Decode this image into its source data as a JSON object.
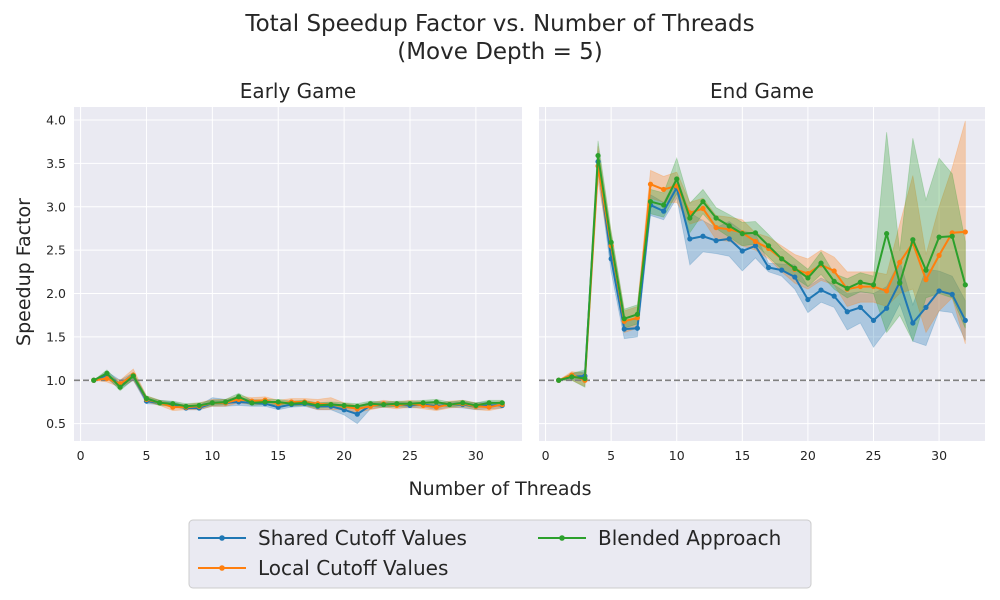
{
  "figure": {
    "title_line1": "Total Speedup Factor vs. Number of Threads",
    "title_line2": "(Move Depth = 5)",
    "xlabel": "Number of Threads",
    "ylabel": "Speedup Factor"
  },
  "colors": {
    "background": "#eaeaf2",
    "grid": "#ffffff",
    "reference_line": "#808080",
    "shared": "#1f77b4",
    "local": "#ff7f0e",
    "blended": "#2ca02c"
  },
  "chart_data": [
    {
      "type": "line",
      "title": "Early Game",
      "xlim": [
        -0.5,
        33.5
      ],
      "ylim": [
        0.3,
        4.15
      ],
      "xticks": [
        0,
        5,
        10,
        15,
        20,
        25,
        30
      ],
      "yticks": [
        0.5,
        1.0,
        1.5,
        2.0,
        2.5,
        3.0,
        3.5,
        4.0
      ],
      "ytick_labels": [
        "0.5",
        "1.0",
        "1.5",
        "2.0",
        "2.5",
        "3.0",
        "3.5",
        "4.0"
      ],
      "reference_line_y": 1.0,
      "x": [
        1,
        2,
        3,
        4,
        5,
        6,
        7,
        8,
        9,
        10,
        11,
        12,
        13,
        14,
        15,
        16,
        17,
        18,
        19,
        20,
        21,
        22,
        23,
        24,
        25,
        26,
        27,
        28,
        29,
        30,
        31,
        32
      ],
      "series": [
        {
          "name": "Shared Cutoff Values",
          "values": [
            1.0,
            1.06,
            0.95,
            1.05,
            0.76,
            0.74,
            0.72,
            0.68,
            0.68,
            0.74,
            0.74,
            0.75,
            0.74,
            0.73,
            0.69,
            0.72,
            0.73,
            0.7,
            0.7,
            0.66,
            0.61,
            0.71,
            0.72,
            0.72,
            0.71,
            0.72,
            0.7,
            0.72,
            0.72,
            0.7,
            0.71,
            0.71
          ],
          "lower": [
            1.0,
            1.02,
            0.9,
            1.0,
            0.73,
            0.72,
            0.7,
            0.66,
            0.66,
            0.7,
            0.7,
            0.71,
            0.7,
            0.7,
            0.66,
            0.69,
            0.7,
            0.66,
            0.66,
            0.6,
            0.5,
            0.67,
            0.69,
            0.69,
            0.68,
            0.69,
            0.66,
            0.69,
            0.68,
            0.66,
            0.67,
            0.68
          ],
          "upper": [
            1.0,
            1.1,
            1.0,
            1.09,
            0.8,
            0.77,
            0.75,
            0.71,
            0.71,
            0.8,
            0.78,
            0.8,
            0.78,
            0.77,
            0.73,
            0.76,
            0.76,
            0.74,
            0.74,
            0.71,
            0.7,
            0.75,
            0.75,
            0.75,
            0.74,
            0.75,
            0.74,
            0.75,
            0.75,
            0.74,
            0.75,
            0.74
          ]
        },
        {
          "name": "Local Cutoff Values",
          "values": [
            1.0,
            1.02,
            0.96,
            1.06,
            0.78,
            0.74,
            0.69,
            0.69,
            0.7,
            0.74,
            0.74,
            0.78,
            0.76,
            0.77,
            0.73,
            0.75,
            0.75,
            0.73,
            0.72,
            0.7,
            0.67,
            0.7,
            0.73,
            0.71,
            0.73,
            0.71,
            0.69,
            0.72,
            0.73,
            0.7,
            0.69,
            0.72
          ],
          "lower": [
            1.0,
            0.98,
            0.92,
            1.0,
            0.75,
            0.71,
            0.65,
            0.66,
            0.66,
            0.7,
            0.7,
            0.74,
            0.72,
            0.73,
            0.69,
            0.71,
            0.71,
            0.66,
            0.66,
            0.66,
            0.63,
            0.66,
            0.69,
            0.67,
            0.69,
            0.67,
            0.65,
            0.68,
            0.69,
            0.66,
            0.65,
            0.68
          ],
          "upper": [
            1.0,
            1.06,
            1.0,
            1.13,
            0.82,
            0.77,
            0.73,
            0.72,
            0.74,
            0.78,
            0.78,
            0.82,
            0.8,
            0.81,
            0.77,
            0.79,
            0.79,
            0.78,
            0.8,
            0.74,
            0.71,
            0.74,
            0.77,
            0.75,
            0.77,
            0.75,
            0.73,
            0.76,
            0.77,
            0.74,
            0.73,
            0.76
          ]
        },
        {
          "name": "Blended Approach",
          "values": [
            1.0,
            1.08,
            0.92,
            1.05,
            0.79,
            0.74,
            0.73,
            0.7,
            0.71,
            0.74,
            0.75,
            0.81,
            0.74,
            0.75,
            0.75,
            0.73,
            0.74,
            0.71,
            0.72,
            0.71,
            0.7,
            0.73,
            0.72,
            0.73,
            0.73,
            0.74,
            0.75,
            0.72,
            0.74,
            0.71,
            0.74,
            0.74
          ],
          "lower": [
            1.0,
            1.04,
            0.88,
            1.01,
            0.76,
            0.71,
            0.7,
            0.67,
            0.68,
            0.71,
            0.72,
            0.77,
            0.71,
            0.72,
            0.72,
            0.7,
            0.71,
            0.68,
            0.69,
            0.68,
            0.67,
            0.7,
            0.69,
            0.7,
            0.7,
            0.71,
            0.72,
            0.69,
            0.71,
            0.68,
            0.71,
            0.71
          ],
          "upper": [
            1.0,
            1.12,
            0.96,
            1.09,
            0.82,
            0.77,
            0.76,
            0.73,
            0.74,
            0.77,
            0.78,
            0.85,
            0.77,
            0.78,
            0.78,
            0.76,
            0.77,
            0.74,
            0.75,
            0.74,
            0.73,
            0.76,
            0.75,
            0.76,
            0.76,
            0.77,
            0.78,
            0.75,
            0.77,
            0.74,
            0.77,
            0.77
          ]
        }
      ]
    },
    {
      "type": "line",
      "title": "End Game",
      "xlim": [
        -0.5,
        33.5
      ],
      "ylim": [
        0.3,
        4.15
      ],
      "xticks": [
        0,
        5,
        10,
        15,
        20,
        25,
        30
      ],
      "yticks": [
        0.5,
        1.0,
        1.5,
        2.0,
        2.5,
        3.0,
        3.5,
        4.0
      ],
      "ytick_labels": [
        "",
        "",
        "",
        "",
        "",
        "",
        "",
        ""
      ],
      "reference_line_y": 1.0,
      "x": [
        1,
        2,
        3,
        4,
        5,
        6,
        7,
        8,
        9,
        10,
        11,
        12,
        13,
        14,
        15,
        16,
        17,
        18,
        19,
        20,
        21,
        22,
        23,
        24,
        25,
        26,
        27,
        28,
        29,
        30,
        31,
        32
      ],
      "series": [
        {
          "name": "Shared Cutoff Values",
          "values": [
            1.0,
            1.04,
            1.05,
            3.52,
            2.4,
            1.59,
            1.6,
            3.02,
            2.95,
            3.22,
            2.63,
            2.66,
            2.61,
            2.63,
            2.49,
            2.55,
            2.3,
            2.27,
            2.19,
            1.93,
            2.04,
            1.97,
            1.79,
            1.84,
            1.69,
            1.83,
            2.13,
            1.66,
            1.84,
            2.03,
            1.99,
            1.69
          ],
          "lower": [
            1.0,
            1.0,
            1.0,
            3.4,
            2.25,
            1.48,
            1.5,
            2.9,
            2.85,
            3.1,
            2.33,
            2.48,
            2.46,
            2.43,
            2.26,
            2.41,
            2.25,
            2.2,
            2.05,
            1.78,
            1.9,
            1.84,
            1.58,
            1.66,
            1.38,
            1.58,
            1.88,
            1.45,
            1.4,
            1.8,
            1.78,
            1.46
          ]
        },
        {
          "name": "Local Cutoff Values",
          "values": [
            1.0,
            1.06,
            1.0,
            3.47,
            2.55,
            1.68,
            1.72,
            3.26,
            3.2,
            3.24,
            2.93,
            2.98,
            2.76,
            2.74,
            2.7,
            2.6,
            2.52,
            2.4,
            2.28,
            2.23,
            2.33,
            2.26,
            2.05,
            2.08,
            2.08,
            2.03,
            2.36,
            2.58,
            2.16,
            2.44,
            2.7,
            2.71
          ],
          "lower": [
            1.0,
            1.0,
            0.93,
            3.3,
            2.4,
            1.55,
            1.6,
            3.1,
            3.05,
            3.05,
            2.8,
            2.85,
            2.62,
            2.6,
            2.55,
            2.5,
            2.4,
            2.25,
            2.12,
            2.05,
            2.15,
            2.1,
            1.85,
            1.9,
            1.9,
            1.85,
            2.0,
            2.05,
            1.55,
            1.8,
            1.95,
            1.42
          ],
          "upper": [
            1.0,
            1.1,
            1.08,
            3.7,
            2.7,
            1.8,
            1.85,
            3.42,
            3.35,
            3.4,
            3.05,
            3.1,
            2.9,
            2.88,
            2.85,
            2.7,
            2.65,
            2.55,
            2.45,
            2.4,
            2.5,
            2.42,
            2.25,
            2.25,
            2.25,
            2.22,
            2.8,
            3.36,
            2.45,
            3.0,
            3.45,
            3.99
          ]
        },
        {
          "name": "Blended Approach",
          "values": [
            1.0,
            1.04,
            1.02,
            3.59,
            2.59,
            1.71,
            1.76,
            3.06,
            3.02,
            3.32,
            2.87,
            3.06,
            2.87,
            2.78,
            2.69,
            2.7,
            2.55,
            2.4,
            2.29,
            2.18,
            2.35,
            2.14,
            2.06,
            2.13,
            2.1,
            2.69,
            2.12,
            2.62,
            2.27,
            2.65,
            2.66,
            2.1
          ],
          "lower": [
            1.0,
            1.0,
            0.92,
            3.45,
            2.45,
            1.6,
            1.65,
            2.92,
            2.88,
            3.15,
            2.7,
            2.92,
            2.75,
            2.65,
            2.55,
            2.57,
            2.42,
            2.28,
            2.18,
            2.08,
            2.22,
            2.05,
            1.95,
            2.02,
            2.0,
            1.55,
            1.75,
            1.45,
            1.95,
            2.0,
            1.95,
            1.6
          ],
          "upper": [
            1.0,
            1.08,
            1.12,
            3.76,
            2.72,
            1.82,
            1.87,
            3.2,
            3.16,
            3.56,
            3.04,
            3.2,
            2.99,
            2.91,
            2.82,
            2.83,
            2.68,
            2.52,
            2.4,
            2.28,
            2.48,
            2.23,
            2.17,
            2.24,
            2.2,
            3.86,
            2.49,
            3.79,
            3.08,
            3.56,
            3.38,
            2.6
          ]
        }
      ]
    }
  ],
  "legend": {
    "placement": "bottom-center",
    "items": [
      {
        "label": "Shared Cutoff Values"
      },
      {
        "label": "Local Cutoff Values"
      },
      {
        "label": "Blended Approach"
      }
    ]
  }
}
